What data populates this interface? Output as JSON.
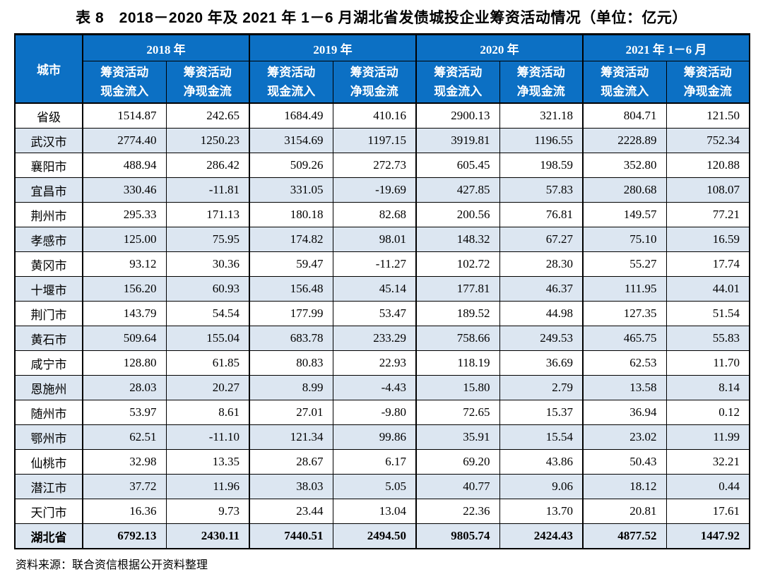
{
  "page": {
    "title": "表 8　2018－2020 年及 2021 年 1－6 月湖北省发债城投企业筹资活动情况（单位：亿元）",
    "source": "资料来源：联合资信根据公开资料整理"
  },
  "colors": {
    "header_bg": "#0c70c4",
    "header_text": "#ffffff",
    "row_stripe": "#dce6f1",
    "border": "#000000"
  },
  "chart_data": {
    "type": "table",
    "corner_header": "城市",
    "year_groups": [
      "2018 年",
      "2019 年",
      "2020 年",
      "2021 年 1－6 月"
    ],
    "sub_header_line1": "筹资活动",
    "sub_header_line2": [
      "现金流入",
      "净现金流"
    ],
    "rows": [
      {
        "city": "省级",
        "values": [
          "1514.87",
          "242.65",
          "1684.49",
          "410.16",
          "2900.13",
          "321.18",
          "804.71",
          "121.50"
        ]
      },
      {
        "city": "武汉市",
        "values": [
          "2774.40",
          "1250.23",
          "3154.69",
          "1197.15",
          "3919.81",
          "1196.55",
          "2228.89",
          "752.34"
        ]
      },
      {
        "city": "襄阳市",
        "values": [
          "488.94",
          "286.42",
          "509.26",
          "272.73",
          "605.45",
          "198.59",
          "352.80",
          "120.88"
        ]
      },
      {
        "city": "宜昌市",
        "values": [
          "330.46",
          "-11.81",
          "331.05",
          "-19.69",
          "427.85",
          "57.83",
          "280.68",
          "108.07"
        ]
      },
      {
        "city": "荆州市",
        "values": [
          "295.33",
          "171.13",
          "180.18",
          "82.68",
          "200.56",
          "76.81",
          "149.57",
          "77.21"
        ]
      },
      {
        "city": "孝感市",
        "values": [
          "125.00",
          "75.95",
          "174.82",
          "98.01",
          "148.32",
          "67.27",
          "75.10",
          "16.59"
        ]
      },
      {
        "city": "黄冈市",
        "values": [
          "93.12",
          "30.36",
          "59.47",
          "-11.27",
          "102.72",
          "28.30",
          "55.27",
          "17.74"
        ]
      },
      {
        "city": "十堰市",
        "values": [
          "156.20",
          "60.93",
          "156.48",
          "45.14",
          "177.81",
          "46.37",
          "111.95",
          "44.01"
        ]
      },
      {
        "city": "荆门市",
        "values": [
          "143.79",
          "54.54",
          "177.99",
          "53.47",
          "189.52",
          "44.98",
          "127.35",
          "51.54"
        ]
      },
      {
        "city": "黄石市",
        "values": [
          "509.64",
          "155.04",
          "683.78",
          "233.29",
          "758.66",
          "249.53",
          "465.75",
          "55.83"
        ]
      },
      {
        "city": "咸宁市",
        "values": [
          "128.80",
          "61.85",
          "80.83",
          "22.93",
          "118.19",
          "36.69",
          "62.53",
          "11.70"
        ]
      },
      {
        "city": "恩施州",
        "values": [
          "28.03",
          "20.27",
          "8.99",
          "-4.43",
          "15.80",
          "2.79",
          "13.58",
          "8.14"
        ]
      },
      {
        "city": "随州市",
        "values": [
          "53.97",
          "8.61",
          "27.01",
          "-9.80",
          "72.65",
          "15.37",
          "36.94",
          "0.12"
        ]
      },
      {
        "city": "鄂州市",
        "values": [
          "62.51",
          "-11.10",
          "121.34",
          "99.86",
          "35.91",
          "15.54",
          "23.02",
          "11.99"
        ]
      },
      {
        "city": "仙桃市",
        "values": [
          "32.98",
          "13.35",
          "28.67",
          "6.17",
          "69.20",
          "43.86",
          "50.43",
          "32.21"
        ]
      },
      {
        "city": "潜江市",
        "values": [
          "37.72",
          "11.96",
          "38.03",
          "5.05",
          "40.77",
          "9.06",
          "18.12",
          "0.44"
        ]
      },
      {
        "city": "天门市",
        "values": [
          "16.36",
          "9.73",
          "23.44",
          "13.04",
          "22.36",
          "13.70",
          "20.81",
          "17.61"
        ]
      },
      {
        "city": "湖北省",
        "values": [
          "6792.13",
          "2430.11",
          "7440.51",
          "2494.50",
          "9805.74",
          "2424.43",
          "4877.52",
          "1447.92"
        ],
        "total": true
      }
    ]
  }
}
